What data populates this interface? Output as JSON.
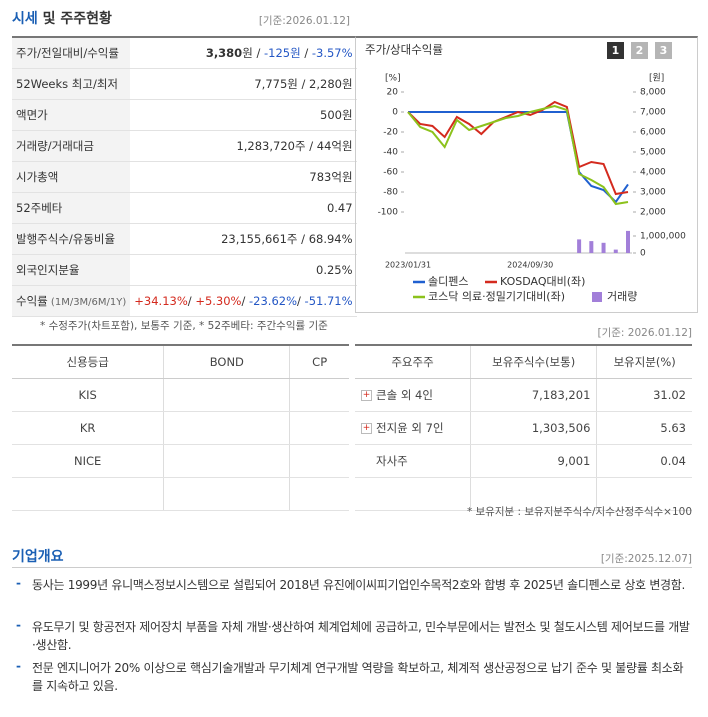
{
  "summary": {
    "title_main": "시세",
    "title_rest": " 및 주주현황",
    "date": "[기준:2026.01.12]",
    "rows": [
      {
        "label": "주가/전일대비/수익률",
        "value": [
          "3,380",
          "원",
          " / ",
          "-125원",
          " / ",
          "-3.57%"
        ]
      },
      {
        "label": "52Weeks 최고/최저",
        "value": "7,775원 / 2,280원"
      },
      {
        "label": "액면가",
        "value": "500원"
      },
      {
        "label": "거래량/거래대금",
        "value": "1,283,720주 / 44억원"
      },
      {
        "label": "시가총액",
        "value": "783억원"
      },
      {
        "label": "52주베타",
        "value": "0.47"
      },
      {
        "label": "발행주식수/유동비율",
        "value": "23,155,661주 / 68.94%"
      },
      {
        "label": "외국인지분율",
        "value": "0.25%"
      },
      {
        "label": [
          "수익률",
          " (1M/3M/6M/1Y)"
        ],
        "value": [
          "+34.13%",
          "/ ",
          "+5.30%",
          "/ ",
          "-23.62%",
          "/ ",
          "-51.71%"
        ]
      }
    ],
    "note": "* 수정주가(차트포함), 보통주 기준, * 52주베타: 주간수익률 기준"
  },
  "chart_data": {
    "type": "line",
    "title": "주가/상대수익률",
    "buttons": [
      "1",
      "2",
      "3"
    ],
    "y_unit": "[%]",
    "y2_unit": "[원]",
    "categories": [
      "2023/01/31",
      null,
      null,
      null,
      null,
      null,
      null,
      null,
      null,
      null,
      "2024/09/30",
      null,
      null,
      null,
      null,
      null,
      null,
      null,
      null
    ],
    "ylim": [
      -100,
      20
    ],
    "yticks": [
      20,
      0,
      -20,
      -40,
      -60,
      -80,
      -100
    ],
    "y2lim": [
      2000,
      8000
    ],
    "y2ticks": [
      {
        "value": 8000,
        "label": "8,000"
      },
      {
        "value": 7000,
        "label": "7,000"
      },
      {
        "value": 6000,
        "label": "6,000"
      },
      {
        "value": 5000,
        "label": "5,000"
      },
      {
        "value": 4000,
        "label": "4,000"
      },
      {
        "value": 3000,
        "label": "3,000"
      },
      {
        "value": 2000,
        "label": "2,000"
      }
    ],
    "volume_lim": [
      0,
      1000000
    ],
    "volume_ticks": [
      {
        "value": 1000000,
        "label": "1,000,000"
      },
      0
    ],
    "series": [
      {
        "name": "솔디펜스",
        "color": "#2060d0",
        "axis": "y2",
        "values": [
          7000,
          7000,
          7000,
          7000,
          7000,
          7000,
          7000,
          7000,
          7000,
          7000,
          7000,
          7000,
          7000,
          7000,
          4000,
          3300,
          3100,
          2500,
          3380
        ]
      },
      {
        "name": "KOSDAQ대비(좌)",
        "color": "#d42a1e",
        "values": [
          0,
          -12,
          -14,
          -25,
          -5,
          -12,
          -22,
          -10,
          -5,
          0,
          -3,
          2,
          10,
          5,
          -55,
          -50,
          -52,
          -82,
          -80
        ]
      },
      {
        "name": "코스닥 의료·정밀기기대비(좌)",
        "color": "#8cc21c",
        "values": [
          0,
          -15,
          -20,
          -35,
          -8,
          -18,
          -14,
          -10,
          -6,
          -4,
          0,
          3,
          6,
          2,
          -62,
          -68,
          -75,
          -92,
          -90
        ]
      },
      {
        "name": "거래량",
        "color": "#a27fd9",
        "axis": "volume",
        "values": [
          0,
          0,
          0,
          0,
          0,
          0,
          0,
          0,
          0,
          0,
          0,
          0,
          0,
          0,
          800000,
          700000,
          600000,
          200000,
          1300000
        ]
      }
    ]
  },
  "credit": {
    "headers": [
      "신용등급",
      "BOND",
      "CP"
    ],
    "rows": [
      "KIS",
      "KR",
      "NICE"
    ]
  },
  "shareholders": {
    "date": "[기준: 2026.01.12]",
    "headers": [
      "주요주주",
      "보유주식수(보통)",
      "보유지분(%)"
    ],
    "rows": [
      [
        "큰솔 외 4인",
        "7,183,201",
        "31.02"
      ],
      [
        "전지윤 외 7인",
        "1,303,506",
        "5.63"
      ],
      [
        "자사주",
        "9,001",
        "0.04"
      ]
    ],
    "note": "* 보유지분 : 보유지분주식수/지수산정주식수×100"
  },
  "overview": {
    "title": "기업개요",
    "date": "[기준:2025.12.07]",
    "items": [
      "동사는 1999년 유니맥스정보시스템으로 설립되어 2018년 유진에이씨피기업인수목적2호와 합병 후 2025년 솔디펜스로 상호 변경함.",
      "유도무기 및 항공전자 제어장치 부품을 자체 개발·생산하여 체계업체에 공급하고, 민수부문에서는 발전소 및 철도시스템 제어보드를 개발·생산함.",
      "전문 엔지니어가 20% 이상으로 핵심기술개발과 무기체계 연구개발 역량을 확보하고, 체계적 생산공정으로 납기 준수 및 불량률 최소화를 지속하고 있음."
    ]
  }
}
